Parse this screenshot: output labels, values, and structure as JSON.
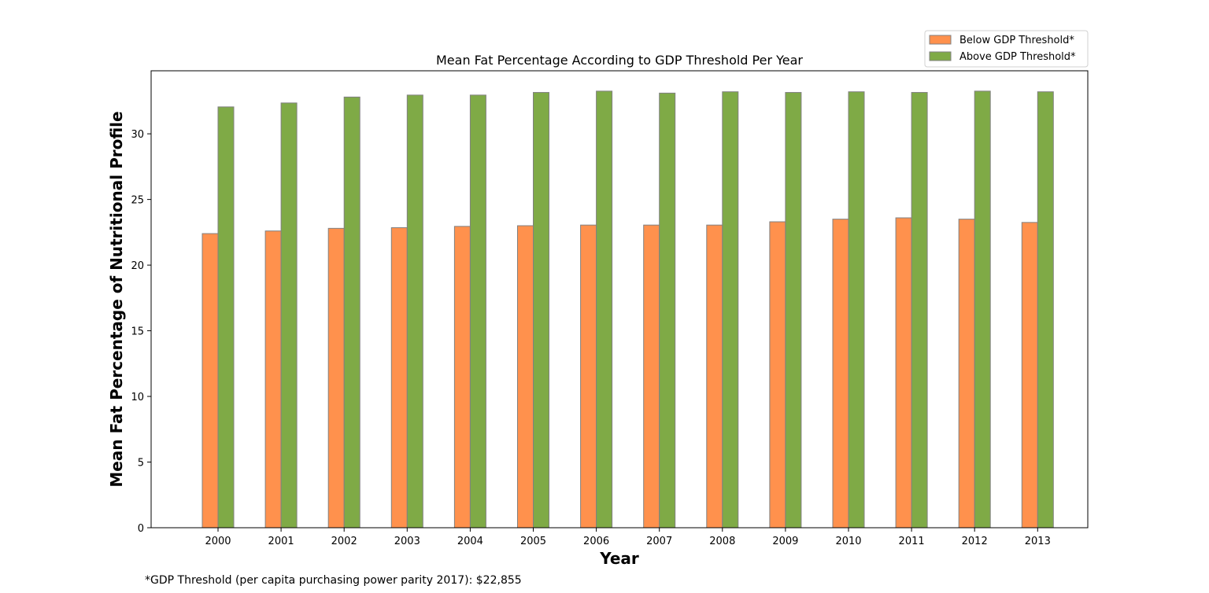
{
  "chart_data": {
    "type": "bar",
    "title": "Mean Fat Percentage According to GDP Threshold Per Year",
    "xlabel": "Year",
    "ylabel": "Mean Fat Percentage of Nutritional Profile",
    "categories": [
      "2000",
      "2001",
      "2002",
      "2003",
      "2004",
      "2005",
      "2006",
      "2007",
      "2008",
      "2009",
      "2010",
      "2011",
      "2012",
      "2013"
    ],
    "series": [
      {
        "name": "Below GDP Threshold*",
        "color": "#ff914d",
        "values": [
          22.4,
          22.6,
          22.8,
          22.85,
          22.95,
          23.0,
          23.05,
          23.05,
          23.05,
          23.3,
          23.5,
          23.6,
          23.5,
          23.25
        ]
      },
      {
        "name": "Above GDP Threshold*",
        "color": "#7faa46",
        "values": [
          32.05,
          32.35,
          32.8,
          32.95,
          32.95,
          33.15,
          33.25,
          33.1,
          33.2,
          33.15,
          33.2,
          33.15,
          33.25,
          33.2
        ]
      }
    ],
    "ylim": [
      0,
      34.8
    ],
    "yticks": [
      0,
      5,
      10,
      15,
      20,
      25,
      30
    ],
    "legend_position": "top-right",
    "bar_edge_color": "#808080",
    "grid": false
  },
  "footnote": "*GDP Threshold (per capita purchasing power parity 2017): $22,855"
}
